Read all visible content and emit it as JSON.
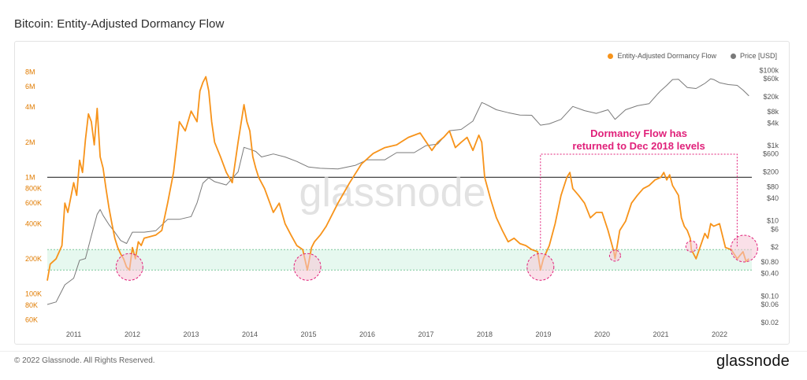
{
  "title": "Bitcoin: Entity-Adjusted Dormancy Flow",
  "footer": {
    "copyright": "© 2022 Glassnode. All Rights Reserved.",
    "brand": "glassnode"
  },
  "watermark": "glassnode",
  "colors": {
    "flow": "#f7931a",
    "price": "#7a7a7a",
    "band_fill": "#e6f8ef",
    "band_border": "#7bc79b",
    "highlight": "#e0217a",
    "highlight_fill": "#f5c6d5",
    "ref_line": "#444444",
    "axis_left_text": "#e07b00",
    "axis_right_text": "#555555"
  },
  "chart_data": {
    "type": "line",
    "title": "Bitcoin: Entity-Adjusted Dormancy Flow",
    "x_tick_labels": [
      "2011",
      "2012",
      "2013",
      "2014",
      "2015",
      "2016",
      "2017",
      "2018",
      "2019",
      "2020",
      "2021",
      "2022"
    ],
    "y_left_scale": "log",
    "y_left_tick_labels": [
      "8M",
      "6M",
      "4M",
      "2M",
      "1M",
      "800K",
      "600K",
      "400K",
      "200K",
      "100K",
      "80K",
      "60K"
    ],
    "y_left_tick_values": [
      8000000,
      6000000,
      4000000,
      2000000,
      1000000,
      800000,
      600000,
      400000,
      200000,
      100000,
      80000,
      60000
    ],
    "y_right_scale": "log",
    "y_right_tick_labels": [
      "$100k",
      "$60k",
      "$20k",
      "$8k",
      "$4k",
      "$1k",
      "$600",
      "$200",
      "$80",
      "$40",
      "$10",
      "$6",
      "$2",
      "$0.80",
      "$0.40",
      "$0.10",
      "$0.06",
      "$0.02"
    ],
    "y_right_tick_values": [
      100000,
      60000,
      20000,
      8000,
      4000,
      1000,
      600,
      200,
      80,
      40,
      10,
      6,
      2,
      0.8,
      0.4,
      0.1,
      0.06,
      0.02
    ],
    "legend": [
      "Entity-Adjusted Dormancy Flow",
      "Price [USD]"
    ],
    "legend_position": "top-right",
    "reference_line": {
      "value": 1000000
    },
    "band": {
      "low": 160000,
      "high": 240000
    },
    "annotation": "Dormancy Flow has\nreturned to Dec 2018 levels",
    "highlight_dates": [
      2011.95,
      2014.98,
      2018.95,
      2020.22,
      2021.52,
      2022.42
    ],
    "series": [
      {
        "name": "Entity-Adjusted Dormancy Flow",
        "color": "#f7931a",
        "x": [
          2010.55,
          2010.6,
          2010.7,
          2010.8,
          2010.85,
          2010.9,
          2011.0,
          2011.05,
          2011.1,
          2011.15,
          2011.2,
          2011.25,
          2011.3,
          2011.35,
          2011.4,
          2011.45,
          2011.5,
          2011.55,
          2011.6,
          2011.65,
          2011.7,
          2011.75,
          2011.8,
          2011.85,
          2011.9,
          2011.95,
          2012.0,
          2012.05,
          2012.1,
          2012.15,
          2012.2,
          2012.3,
          2012.4,
          2012.5,
          2012.6,
          2012.7,
          2012.75,
          2012.8,
          2012.9,
          2013.0,
          2013.1,
          2013.15,
          2013.2,
          2013.25,
          2013.3,
          2013.35,
          2013.4,
          2013.5,
          2013.6,
          2013.7,
          2013.8,
          2013.9,
          2013.95,
          2014.0,
          2014.05,
          2014.1,
          2014.15,
          2014.25,
          2014.4,
          2014.5,
          2014.6,
          2014.7,
          2014.8,
          2014.9,
          2014.98,
          2015.05,
          2015.1,
          2015.2,
          2015.3,
          2015.5,
          2015.7,
          2015.9,
          2016.1,
          2016.3,
          2016.5,
          2016.7,
          2016.9,
          2017.1,
          2017.2,
          2017.3,
          2017.4,
          2017.5,
          2017.6,
          2017.7,
          2017.8,
          2017.9,
          2017.95,
          2018.0,
          2018.1,
          2018.2,
          2018.3,
          2018.4,
          2018.5,
          2018.6,
          2018.7,
          2018.8,
          2018.9,
          2018.95,
          2019.0,
          2019.1,
          2019.2,
          2019.3,
          2019.4,
          2019.45,
          2019.5,
          2019.6,
          2019.7,
          2019.8,
          2019.9,
          2020.0,
          2020.1,
          2020.2,
          2020.22,
          2020.3,
          2020.4,
          2020.5,
          2020.6,
          2020.7,
          2020.8,
          2020.9,
          2021.0,
          2021.05,
          2021.1,
          2021.15,
          2021.2,
          2021.3,
          2021.35,
          2021.4,
          2021.45,
          2021.5,
          2021.52,
          2021.6,
          2021.7,
          2021.75,
          2021.8,
          2021.85,
          2021.9,
          2022.0,
          2022.1,
          2022.2,
          2022.3,
          2022.4,
          2022.45,
          2022.5
        ],
        "values": [
          130000,
          180000,
          200000,
          260000,
          600000,
          500000,
          900000,
          700000,
          1400000,
          1100000,
          2100000,
          3500000,
          3000000,
          1900000,
          3900000,
          1500000,
          1200000,
          800000,
          550000,
          400000,
          300000,
          250000,
          220000,
          200000,
          170000,
          160000,
          250000,
          200000,
          280000,
          260000,
          300000,
          310000,
          320000,
          350000,
          600000,
          1100000,
          1800000,
          3000000,
          2500000,
          3700000,
          3000000,
          5500000,
          6500000,
          7300000,
          5500000,
          3000000,
          2000000,
          1500000,
          1100000,
          900000,
          2000000,
          4200000,
          3000000,
          2500000,
          1500000,
          1200000,
          1000000,
          800000,
          500000,
          600000,
          400000,
          320000,
          260000,
          240000,
          160000,
          250000,
          280000,
          320000,
          380000,
          600000,
          900000,
          1300000,
          1600000,
          1800000,
          1900000,
          2200000,
          2400000,
          1700000,
          2000000,
          2200000,
          2500000,
          1800000,
          2000000,
          2200000,
          1700000,
          2300000,
          2000000,
          1000000,
          650000,
          450000,
          350000,
          280000,
          300000,
          270000,
          260000,
          240000,
          230000,
          160000,
          200000,
          260000,
          400000,
          700000,
          1000000,
          1100000,
          800000,
          700000,
          600000,
          450000,
          500000,
          500000,
          350000,
          230000,
          200000,
          350000,
          420000,
          600000,
          700000,
          800000,
          850000,
          950000,
          1000000,
          1100000,
          950000,
          1050000,
          850000,
          700000,
          450000,
          380000,
          350000,
          300000,
          240000,
          200000,
          280000,
          330000,
          300000,
          400000,
          380000,
          400000,
          250000,
          240000,
          200000,
          230000,
          190000,
          200000
        ]
      },
      {
        "name": "Price [USD]",
        "color": "#7a7a7a",
        "x": [
          2010.55,
          2010.7,
          2010.85,
          2011.0,
          2011.1,
          2011.2,
          2011.3,
          2011.4,
          2011.45,
          2011.5,
          2011.6,
          2011.7,
          2011.8,
          2011.9,
          2012.0,
          2012.2,
          2012.4,
          2012.6,
          2012.8,
          2013.0,
          2013.1,
          2013.2,
          2013.3,
          2013.4,
          2013.6,
          2013.8,
          2013.9,
          2014.0,
          2014.1,
          2014.2,
          2014.4,
          2014.6,
          2014.8,
          2015.0,
          2015.2,
          2015.5,
          2015.8,
          2016.0,
          2016.3,
          2016.5,
          2016.8,
          2017.0,
          2017.2,
          2017.4,
          2017.6,
          2017.8,
          2017.95,
          2018.0,
          2018.2,
          2018.4,
          2018.6,
          2018.8,
          2018.95,
          2019.1,
          2019.3,
          2019.5,
          2019.7,
          2019.9,
          2020.1,
          2020.22,
          2020.4,
          2020.6,
          2020.8,
          2020.95,
          2021.0,
          2021.1,
          2021.2,
          2021.3,
          2021.45,
          2021.6,
          2021.75,
          2021.85,
          2021.9,
          2022.0,
          2022.15,
          2022.3,
          2022.4,
          2022.5
        ],
        "values": [
          0.06,
          0.07,
          0.2,
          0.3,
          0.9,
          1,
          4,
          15,
          20,
          14,
          8,
          5,
          3,
          2.5,
          5,
          5,
          5.5,
          11,
          11,
          13,
          30,
          100,
          140,
          110,
          90,
          200,
          900,
          800,
          700,
          500,
          600,
          500,
          380,
          270,
          250,
          240,
          300,
          420,
          420,
          650,
          650,
          1000,
          1100,
          2500,
          2700,
          4500,
          14000,
          13000,
          9000,
          7500,
          6500,
          6400,
          3500,
          3800,
          5000,
          11000,
          8500,
          7200,
          9000,
          5000,
          9000,
          11500,
          13000,
          24000,
          29000,
          40000,
          57000,
          58000,
          35000,
          33000,
          45000,
          60000,
          57000,
          47000,
          42000,
          40000,
          30000,
          21000
        ]
      }
    ]
  }
}
